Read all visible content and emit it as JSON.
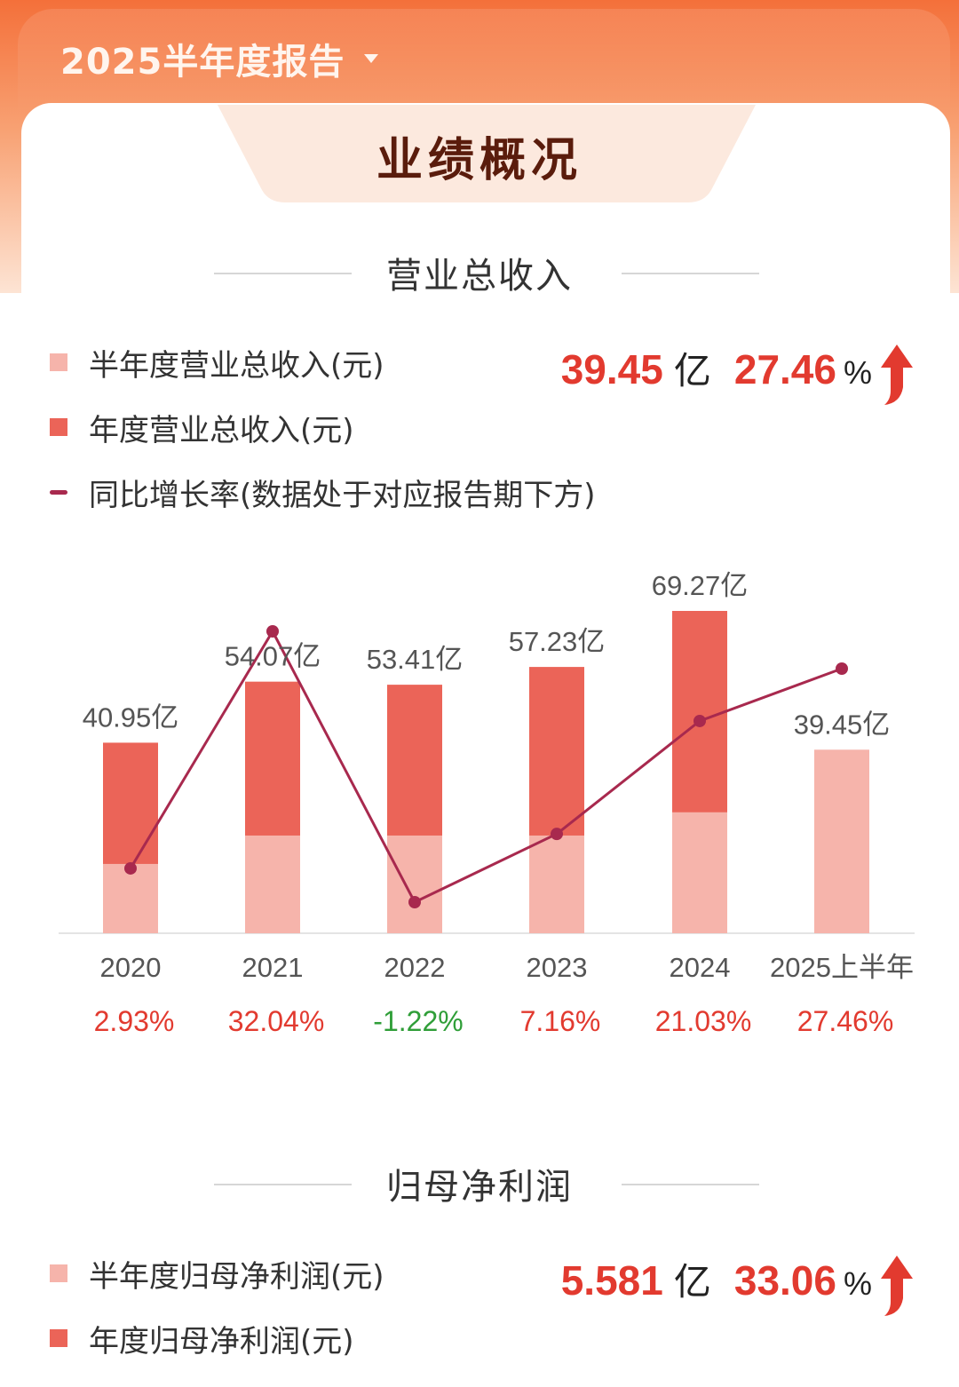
{
  "header": {
    "period_label": "2025半年度报告"
  },
  "section_title": "业绩概况",
  "revenue": {
    "title": "营业总收入",
    "legend": {
      "half": "半年度营业总收入(元)",
      "annual": "年度营业总收入(元)",
      "growth": "同比增长率(数据处于对应报告期下方)"
    },
    "summary": {
      "value": "39.45",
      "unit": "亿",
      "growth": "27.46",
      "pct": "%"
    }
  },
  "profit": {
    "title": "归母净利润",
    "legend": {
      "half": "半年度归母净利润(元)",
      "annual": "年度归母净利润(元)"
    },
    "summary": {
      "value": "5.581",
      "unit": "亿",
      "growth": "33.06",
      "pct": "%"
    }
  },
  "colors": {
    "half": "#f6b4ab",
    "annual": "#eb6458",
    "line": "#a8294e",
    "positive": "#e23a2f",
    "negative": "#2f9e38",
    "arrow": "#e23a2f"
  },
  "icons": {
    "dropdown": "caret-down-icon",
    "trend": "arrow-up-icon"
  },
  "chart_data": {
    "type": "bar",
    "categories": [
      "2020",
      "2021",
      "2022",
      "2023",
      "2024",
      "2025上半年"
    ],
    "series": [
      {
        "name": "半年度营业总收入(元)",
        "values": [
          14.9,
          21.0,
          21.0,
          21.0,
          26.0,
          39.45
        ]
      },
      {
        "name": "年度营业总收入(元)",
        "values": [
          40.95,
          54.07,
          53.41,
          57.23,
          69.27,
          null
        ]
      }
    ],
    "bar_labels": [
      "40.95亿",
      "54.07亿",
      "53.41亿",
      "57.23亿",
      "69.27亿",
      "39.45亿"
    ],
    "growth_line": {
      "name": "同比增长率(数据处于对应报告期下方)",
      "values": [
        2.93,
        32.04,
        -1.22,
        7.16,
        21.03,
        27.46
      ]
    },
    "growth_labels": [
      "2.93%",
      "32.04%",
      "-1.22%",
      "7.16%",
      "21.03%",
      "27.46%"
    ],
    "ylim": [
      0,
      69.27
    ],
    "growth_range": [
      -1.22,
      32.04
    ]
  }
}
